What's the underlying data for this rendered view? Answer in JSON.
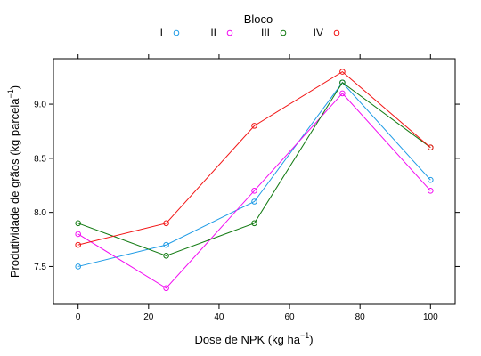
{
  "chart_data": {
    "type": "line",
    "x": [
      0,
      25,
      50,
      75,
      100
    ],
    "series": [
      {
        "name": "I",
        "color": "#1E9BE6",
        "values": [
          7.5,
          7.7,
          8.1,
          9.2,
          8.3
        ]
      },
      {
        "name": "II",
        "color": "#F20CF2",
        "values": [
          7.8,
          7.3,
          8.2,
          9.1,
          8.2
        ]
      },
      {
        "name": "III",
        "color": "#127A12",
        "values": [
          7.9,
          7.6,
          7.9,
          9.2,
          8.6
        ]
      },
      {
        "name": "IV",
        "color": "#F21515",
        "values": [
          7.7,
          7.9,
          8.8,
          9.3,
          8.6
        ]
      }
    ],
    "xlabel": "Dose de NPK (kg ha",
    "xlabel_sup": "−1",
    "xlabel_end": ")",
    "ylabel": "Produtividade de grãos (kg parcela",
    "ylabel_sup": "−1",
    "ylabel_end": ")",
    "legend_title": "Bloco",
    "legend_position": "top",
    "xticks": [
      0,
      20,
      40,
      60,
      80,
      100
    ],
    "xtick_labels": [
      "0",
      "20",
      "40",
      "60",
      "80",
      "100"
    ],
    "yticks": [
      7.5,
      8.0,
      8.5,
      9.0
    ],
    "ytick_labels": [
      "7.5",
      "8.0",
      "8.5",
      "9.0"
    ],
    "xlim": [
      -7,
      107
    ],
    "ylim": [
      7.15,
      9.42
    ],
    "marker": "open-circle",
    "grid": false
  }
}
